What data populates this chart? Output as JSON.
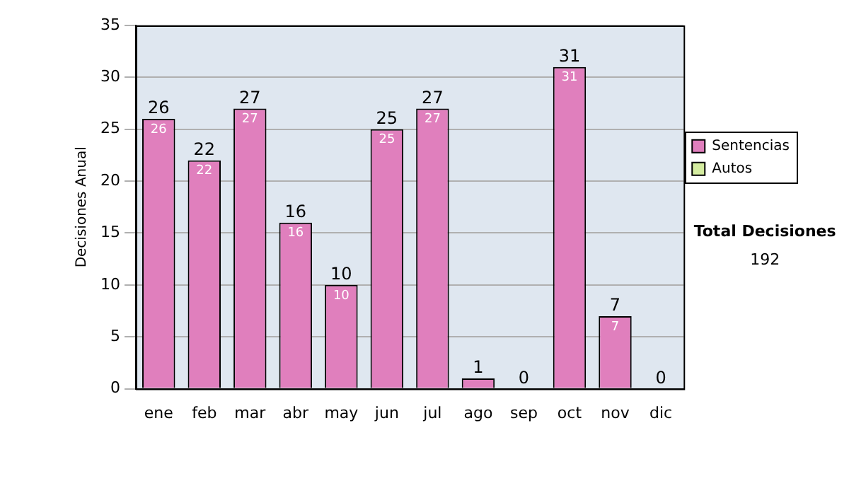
{
  "chart_data": {
    "type": "bar",
    "stacked": true,
    "ylabel": "Decisiones Anual",
    "categories": [
      "ene",
      "feb",
      "mar",
      "abr",
      "may",
      "jun",
      "jul",
      "ago",
      "sep",
      "oct",
      "nov",
      "dic"
    ],
    "series": [
      {
        "name": "Sentencias",
        "color": "#e07fbd",
        "values": [
          26,
          22,
          27,
          16,
          10,
          25,
          27,
          1,
          0,
          31,
          7,
          0
        ],
        "value_labels": [
          "26",
          "22",
          "27",
          "16",
          "10",
          "25",
          "27",
          null,
          null,
          "31",
          "7",
          null
        ]
      },
      {
        "name": "Autos",
        "color": "#d4eca0",
        "values": [
          0,
          0,
          0,
          0,
          0,
          0,
          0,
          0,
          0,
          0,
          0,
          0
        ]
      }
    ],
    "totals": [
      "26",
      "22",
      "27",
      "16",
      "10",
      "25",
      "27",
      "1",
      "0",
      "31",
      "7",
      "0"
    ],
    "ylim": [
      0,
      35
    ],
    "yticks": [
      0,
      5,
      10,
      15,
      20,
      25,
      30,
      35
    ],
    "grid": "y",
    "legend": "right",
    "annotations": [
      "Total Decisiones",
      "192"
    ]
  }
}
